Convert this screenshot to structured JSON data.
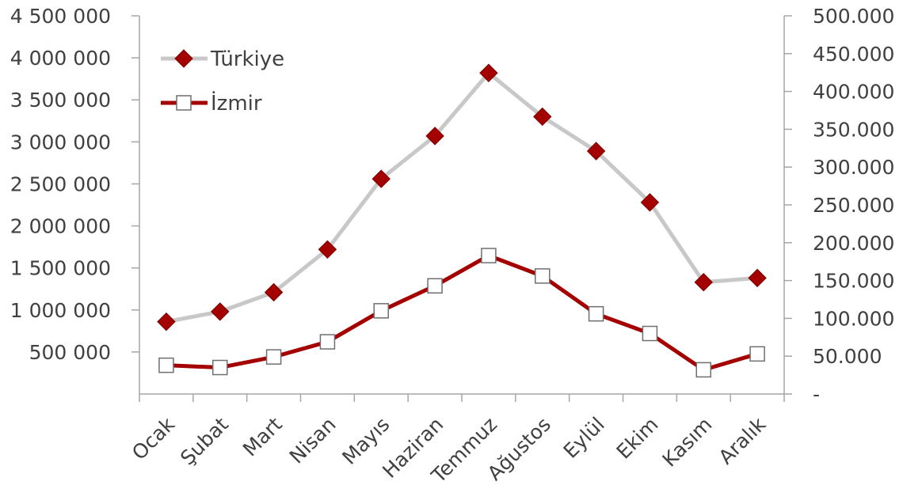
{
  "chart_data": {
    "type": "line",
    "title": "",
    "categories": [
      "Ocak",
      "Şubat",
      "Mart",
      "Nisan",
      "Mayıs",
      "Haziran",
      "Temmuz",
      "Ağustos",
      "Eylül",
      "Ekim",
      "Kasım",
      "Aralık"
    ],
    "series": [
      {
        "name": "Türkiye",
        "axis": "left",
        "values": [
          860000,
          980000,
          1210000,
          1720000,
          2560000,
          3070000,
          3820000,
          3300000,
          2890000,
          2280000,
          1330000,
          1380000
        ],
        "line_color": "#c8c8c8",
        "marker": "diamond",
        "marker_color": "#a50000"
      },
      {
        "name": "İzmir",
        "axis": "right",
        "values": [
          38000,
          35000,
          49000,
          69000,
          110000,
          143000,
          183000,
          156000,
          106000,
          80000,
          32000,
          53000
        ],
        "line_color": "#a50000",
        "marker": "square",
        "marker_color": "#ffffff"
      }
    ],
    "y_left": {
      "ylim": [
        0,
        4500000
      ],
      "ticks": [
        500000,
        1000000,
        1500000,
        2000000,
        2500000,
        3000000,
        3500000,
        4000000,
        4500000
      ],
      "tick_labels": [
        "500 000",
        "1 000 000",
        "1 500 000",
        "2 000 000",
        "2 500 000",
        "3 000 000",
        "3 500 000",
        "4 000 000",
        "4 500 000"
      ]
    },
    "y_right": {
      "ylim": [
        0,
        500000
      ],
      "ticks": [
        0,
        50000,
        100000,
        150000,
        200000,
        250000,
        300000,
        350000,
        400000,
        450000,
        500000
      ],
      "tick_labels": [
        "-",
        "50.000",
        "100.000",
        "150.000",
        "200.000",
        "250.000",
        "300.000",
        "350.000",
        "400.000",
        "450.000",
        "500.000"
      ]
    },
    "grid": false,
    "legend_position": "top-left"
  }
}
